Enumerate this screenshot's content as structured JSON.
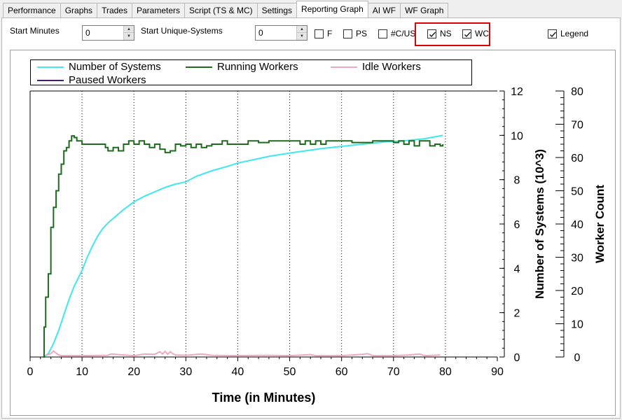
{
  "tabs": [
    {
      "label": "Performance",
      "active": false
    },
    {
      "label": "Graphs",
      "active": false
    },
    {
      "label": "Trades",
      "active": false
    },
    {
      "label": "Parameters",
      "active": false
    },
    {
      "label": "Script (TS & MC)",
      "active": false
    },
    {
      "label": "Settings",
      "active": false
    },
    {
      "label": "Reporting Graph",
      "active": true
    },
    {
      "label": "AI WF",
      "active": false
    },
    {
      "label": "WF Graph",
      "active": false
    }
  ],
  "controls": {
    "start_minutes_label": "Start Minutes",
    "start_minutes_value": "0",
    "start_unique_label": "Start Unique-Systems",
    "start_unique_value": "0",
    "checkboxes": [
      {
        "label": "F",
        "checked": false
      },
      {
        "label": "PS",
        "checked": false
      },
      {
        "label": "#C/US",
        "checked": false
      },
      {
        "label": "NS",
        "checked": true
      },
      {
        "label": "WC",
        "checked": true
      }
    ],
    "legend_label": "Legend",
    "legend_checked": true
  },
  "colors": {
    "highlight": "#e00000",
    "number_of_systems": "#3ee8ec",
    "running_workers": "#1e6b1e",
    "idle_workers": "#f0a8bc",
    "paused_workers": "#4a1c6e"
  },
  "chart_data": {
    "type": "line",
    "xlabel": "Time (in Minutes)",
    "ylabel_left": "Number of Systems (10^3)",
    "ylabel_right": "Worker Count",
    "xlim": [
      0,
      90
    ],
    "ylim_left": [
      0,
      12
    ],
    "ylim_right": [
      0,
      80
    ],
    "x_ticks": [
      "0",
      "10",
      "20",
      "30",
      "40",
      "50",
      "60",
      "70",
      "80",
      "90"
    ],
    "y_left_ticks": [
      "0",
      "2",
      "4",
      "6",
      "8",
      "10",
      "12"
    ],
    "y_right_ticks": [
      "0",
      "10",
      "20",
      "30",
      "40",
      "50",
      "60",
      "70",
      "80"
    ],
    "grid": "vertical dotted at x ticks",
    "legend_position": "top",
    "series": [
      {
        "name": "Number of Systems",
        "axis": "left",
        "x": [
          2.5,
          3.5,
          4.5,
          5.5,
          6.5,
          7.5,
          8.5,
          10,
          11,
          12,
          13,
          14,
          15,
          16,
          18,
          20,
          22,
          24,
          26,
          28,
          30,
          32,
          35,
          38,
          40,
          43,
          46,
          50,
          53,
          56,
          60,
          64,
          68,
          72,
          76,
          79.5
        ],
        "y": [
          0,
          0.15,
          0.6,
          1.2,
          1.9,
          2.6,
          3.2,
          3.9,
          4.5,
          5.0,
          5.45,
          5.8,
          6.05,
          6.25,
          6.65,
          7.0,
          7.25,
          7.45,
          7.65,
          7.8,
          7.9,
          8.15,
          8.4,
          8.6,
          8.75,
          8.9,
          9.05,
          9.2,
          9.3,
          9.4,
          9.5,
          9.6,
          9.7,
          9.75,
          9.85,
          10.0
        ]
      },
      {
        "name": "Running Workers",
        "axis": "right",
        "x": [
          2.5,
          2.7,
          3.0,
          3.5,
          4.0,
          4.5,
          5.0,
          5.5,
          6.0,
          6.5,
          7.0,
          7.5,
          8.0,
          8.5,
          9.0,
          10.0,
          12.0,
          14.0,
          14.5,
          15.0,
          16.0,
          17.0,
          18.0,
          19.0,
          20.0,
          21.0,
          22.0,
          23.0,
          24.0,
          25.0,
          26.0,
          27.0,
          28.0,
          29.0,
          30.0,
          31.0,
          32.0,
          33.0,
          34.0,
          35.0,
          36.0,
          37.0,
          38.0,
          40.0,
          42.0,
          44.0,
          46.0,
          48.0,
          50.0,
          52.0,
          53.0,
          54.0,
          55.0,
          56.0,
          57.0,
          58.0,
          60.0,
          62.0,
          64.0,
          66.0,
          68.0,
          70.0,
          71.0,
          72.0,
          73.0,
          74.0,
          75.0,
          76.0,
          77.0,
          78.0,
          79.0,
          79.5
        ],
        "y": [
          0,
          9,
          18,
          25,
          39,
          45,
          50,
          55,
          58,
          62,
          63,
          65,
          66.5,
          66,
          65,
          64,
          64,
          64,
          63,
          62,
          63,
          62,
          64,
          65,
          64,
          65,
          64,
          63,
          64,
          62.5,
          61.5,
          62,
          64,
          63.5,
          64,
          63,
          64,
          63,
          63.5,
          64,
          64,
          65,
          64,
          64,
          65,
          64.5,
          65,
          65,
          65,
          64,
          65,
          64,
          65,
          64,
          65,
          65,
          65,
          64.5,
          64.5,
          65,
          65,
          64.5,
          65,
          64,
          65,
          63.5,
          65,
          65,
          63.5,
          64,
          63.5,
          64
        ]
      },
      {
        "name": "Idle Workers",
        "axis": "right",
        "x": [
          3,
          4,
          4.5,
          5,
          5.5,
          6,
          8,
          10,
          15,
          15.5,
          20,
          22,
          24,
          25,
          25.5,
          26,
          26.5,
          27,
          27.5,
          28,
          30,
          33,
          35,
          40,
          45,
          50,
          54,
          55,
          60,
          64,
          65,
          66,
          70,
          73,
          75,
          76,
          79
        ],
        "y": [
          0.5,
          1,
          1.8,
          1.2,
          0.6,
          0.4,
          0.4,
          0.4,
          0.5,
          0.9,
          0.4,
          0.9,
          0.8,
          1.6,
          0.9,
          1.7,
          0.8,
          1.6,
          1,
          0.6,
          0.5,
          0.9,
          0.5,
          0.4,
          0.5,
          0.4,
          0.7,
          0.4,
          0.4,
          0.8,
          1.0,
          0.4,
          0.4,
          0.6,
          0.9,
          0.4,
          0.6
        ]
      },
      {
        "name": "Paused Workers",
        "axis": "right",
        "x": [],
        "y": []
      }
    ]
  }
}
